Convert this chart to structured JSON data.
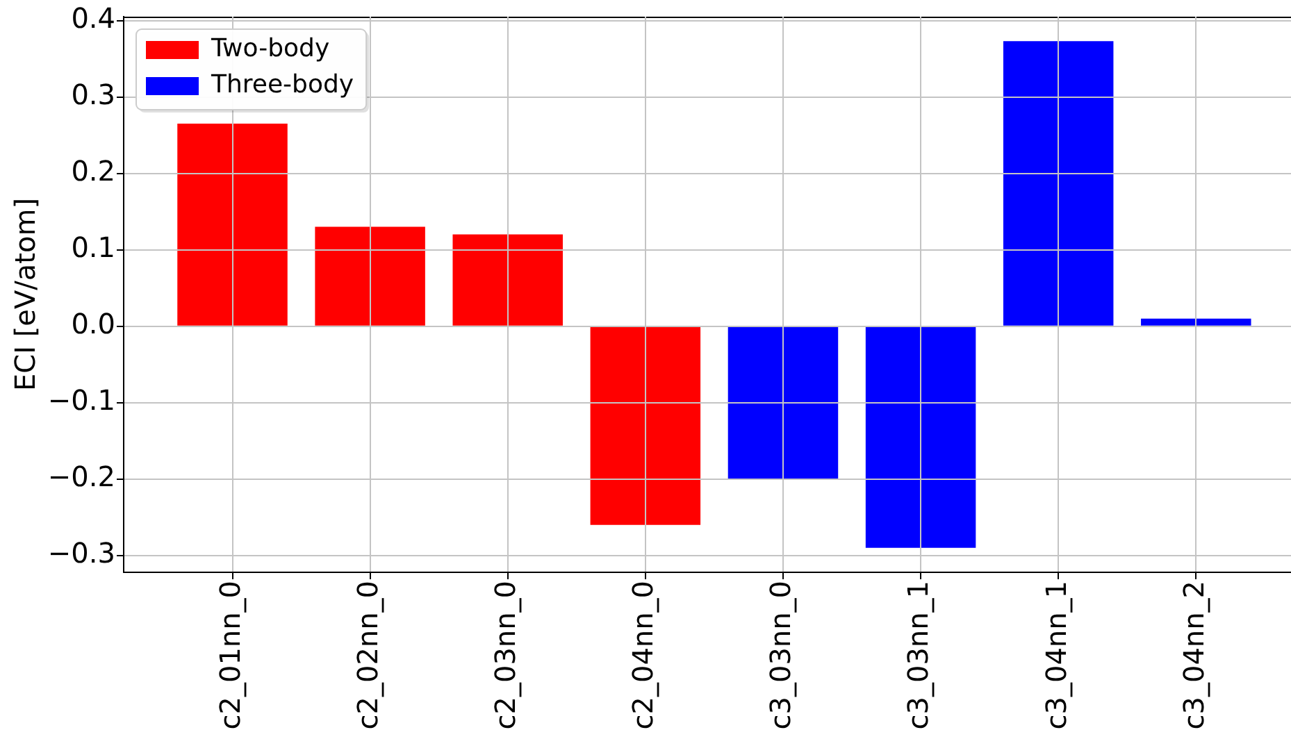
{
  "chart_data": {
    "type": "bar",
    "ylabel": "ECI [eV/atom]",
    "categories": [
      "c2_01nn_0",
      "c2_02nn_0",
      "c2_03nn_0",
      "c2_04nn_0",
      "c3_03nn_0",
      "c3_03nn_1",
      "c3_04nn_1",
      "c3_04nn_2"
    ],
    "series": [
      {
        "name": "Two-body",
        "color": "#ff0000",
        "values": [
          0.265,
          0.13,
          0.12,
          -0.26,
          null,
          null,
          null,
          null
        ]
      },
      {
        "name": "Three-body",
        "color": "#0000ff",
        "values": [
          null,
          null,
          null,
          null,
          -0.2,
          -0.29,
          0.373,
          0.01
        ]
      }
    ],
    "ylim": [
      -0.322,
      0.405
    ],
    "yticks": [
      {
        "value": -0.3,
        "label": "−0.3"
      },
      {
        "value": -0.2,
        "label": "−0.2"
      },
      {
        "value": -0.1,
        "label": "−0.1"
      },
      {
        "value": 0,
        "label": "0.0"
      },
      0.1,
      0.2,
      0.3,
      0.4
    ],
    "grid": true,
    "legend": "top left"
  }
}
